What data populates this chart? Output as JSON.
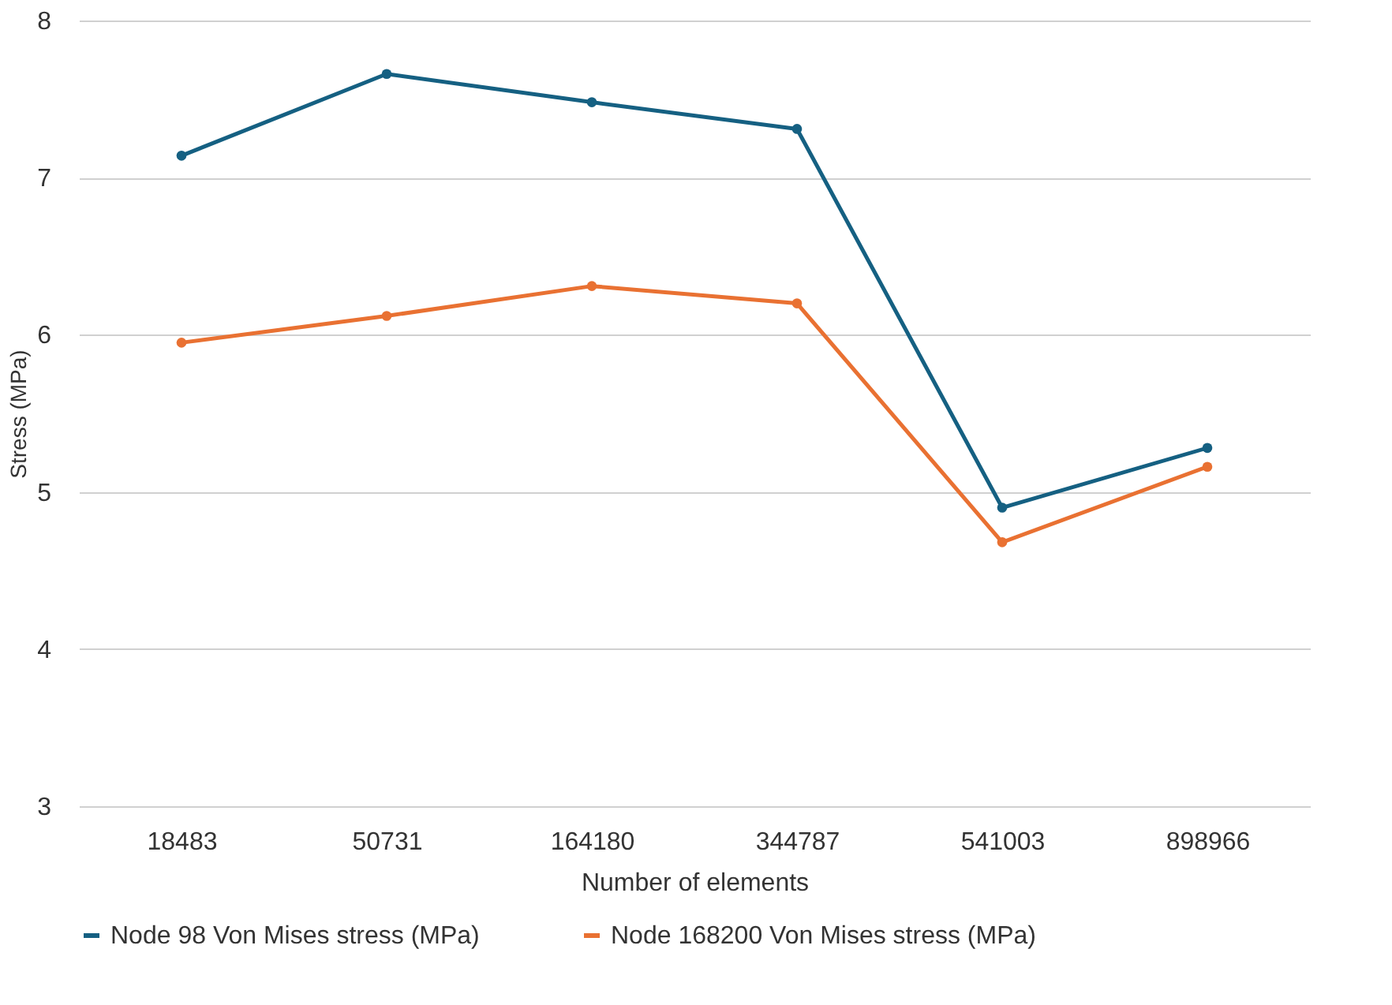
{
  "chart_data": {
    "type": "line",
    "xlabel": "Number of elements",
    "ylabel": "Stress (MPa)",
    "categories": [
      "18483",
      "50731",
      "164180",
      "344787",
      "541003",
      "898966"
    ],
    "series": [
      {
        "name": "Node 98 Von Mises stress (MPa)",
        "color": "#156082",
        "values": [
          7.14,
          7.66,
          7.48,
          7.31,
          4.9,
          5.28
        ]
      },
      {
        "name": "Node 168200 Von Mises stress (MPa)",
        "color": "#e97132",
        "values": [
          5.95,
          6.12,
          6.31,
          6.2,
          4.68,
          5.16
        ]
      }
    ],
    "ylim": [
      3,
      8
    ],
    "yticks": [
      3,
      4,
      5,
      6,
      7,
      8
    ],
    "grid": "y",
    "legend": "bottom",
    "marker": "circle",
    "line_style": "solid"
  }
}
